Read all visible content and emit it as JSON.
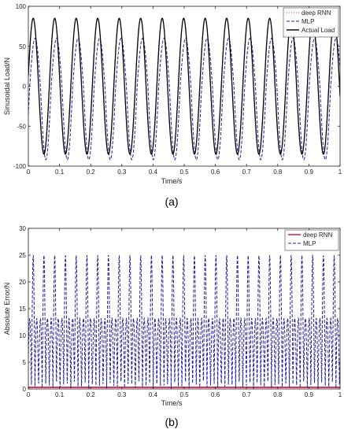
{
  "chart_data": [
    {
      "type": "line",
      "panel_label": "(a)",
      "xlabel": "Time/s",
      "ylabel": "Sinusoidal Load/N",
      "xlim": [
        0,
        1
      ],
      "ylim": [
        -100,
        100
      ],
      "xticks": [
        0,
        0.1,
        0.2,
        0.3,
        0.4,
        0.5,
        0.6,
        0.7,
        0.8,
        0.9,
        1
      ],
      "xtick_labels": [
        "0",
        "0.1",
        "0.2",
        "0.3",
        "0.4",
        "0.5",
        "0.6",
        "0.7",
        "0.8",
        "0.9",
        "1"
      ],
      "yticks": [
        -100,
        -50,
        0,
        50,
        100
      ],
      "ytick_labels": [
        "-100",
        "-50",
        "0",
        "50",
        "100"
      ],
      "grid": false,
      "legend_position": "top-right",
      "series": [
        {
          "name": "deep RNN",
          "style": "dotted",
          "color": "#cc2a7a",
          "frequency_hz": 14.5,
          "amplitude": 85,
          "phase_offset_s": 0.0
        },
        {
          "name": "MLP",
          "style": "dashed",
          "color": "#1f1f99",
          "frequency_hz": 14.5,
          "amplitude_pos": 60,
          "amplitude_neg": 92,
          "phase_offset_s": 0.006
        },
        {
          "name": "Actual Load",
          "style": "solid",
          "color": "#000000",
          "frequency_hz": 14.5,
          "amplitude": 85,
          "phase_offset_s": 0.0
        }
      ]
    },
    {
      "type": "line",
      "panel_label": "(b)",
      "xlabel": "Time/s",
      "ylabel": "Absolute Error/N",
      "xlim": [
        0,
        1
      ],
      "ylim": [
        0,
        30
      ],
      "xticks": [
        0,
        0.1,
        0.2,
        0.3,
        0.4,
        0.5,
        0.6,
        0.7,
        0.8,
        0.9,
        1
      ],
      "xtick_labels": [
        "0",
        "0.1",
        "0.2",
        "0.3",
        "0.4",
        "0.5",
        "0.6",
        "0.7",
        "0.8",
        "0.9",
        "1"
      ],
      "yticks": [
        0,
        5,
        10,
        15,
        20,
        25,
        30
      ],
      "ytick_labels": [
        "0",
        "5",
        "10",
        "15",
        "20",
        "25",
        "30"
      ],
      "grid": false,
      "legend_position": "top-right",
      "series": [
        {
          "name": "deep RNN",
          "style": "solid",
          "color": "#d10a3c",
          "level": 0.3
        },
        {
          "name": "MLP",
          "style": "dashed",
          "color": "#1f1f99",
          "peak_max": 25,
          "peak_mid": 13
        }
      ]
    }
  ]
}
